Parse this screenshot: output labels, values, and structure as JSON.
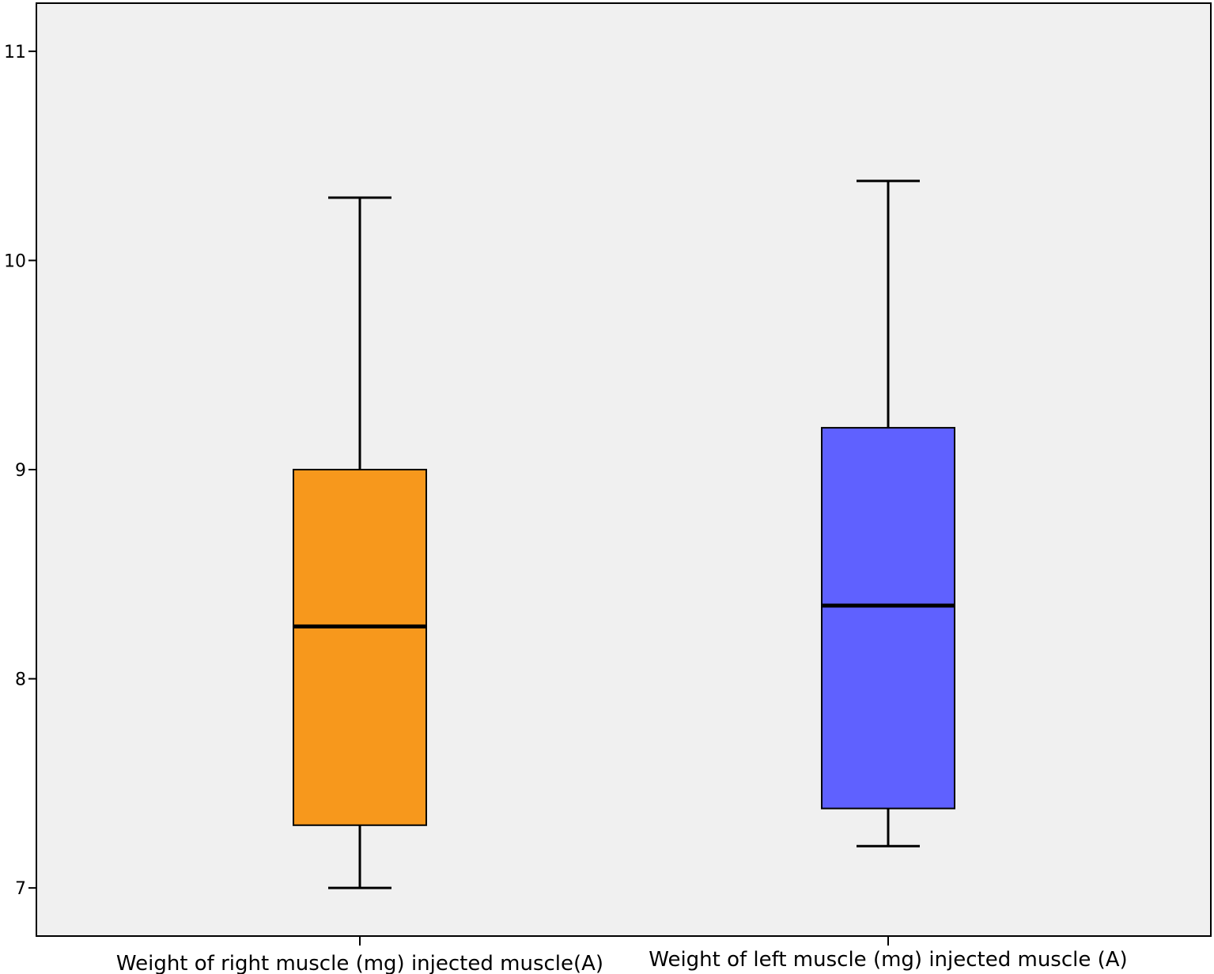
{
  "chart_data": {
    "type": "boxplot",
    "title": "",
    "xlabel": "",
    "ylabel": "",
    "ylim": [
      6.77,
      11.23
    ],
    "yticks": [
      7,
      8,
      9,
      10,
      11
    ],
    "grid": false,
    "legend": "none",
    "plot_background": "#F0F0F0",
    "categories": [
      "Weight of right muscle (mg) injected muscle(A)",
      "Weight of left muscle (mg) injected muscle (A)"
    ],
    "boxes": [
      {
        "label": "Weight of right muscle (mg) injected muscle(A)",
        "min": 7.0,
        "q1": 7.3,
        "median": 8.25,
        "q3": 9.0,
        "max": 10.3,
        "color": "#F7981C"
      },
      {
        "label": "Weight of left muscle (mg) injected muscle (A)",
        "min": 7.2,
        "q1": 7.38,
        "median": 8.35,
        "q3": 9.2,
        "max": 10.38,
        "color": "#5F61FF"
      }
    ]
  }
}
